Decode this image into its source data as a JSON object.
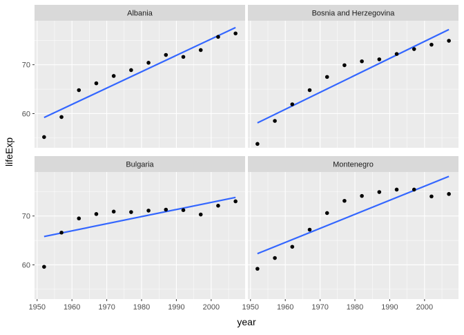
{
  "chart_data": {
    "type": "scatter",
    "xlabel": "year",
    "ylabel": "lifeExp",
    "x_ticks": [
      1950,
      1960,
      1970,
      1980,
      1990,
      2000
    ],
    "y_ticks": [
      60,
      70
    ],
    "xlim": [
      1949.25,
      2009.75
    ],
    "ylim": [
      53.0,
      79.0
    ],
    "grid": true,
    "colors": {
      "points": "#000000",
      "trend": "#3366FF",
      "panel_bg": "#EBEBEB",
      "strip_bg": "#D9D9D9",
      "grid": "#FFFFFF"
    },
    "x": [
      1952,
      1957,
      1962,
      1967,
      1972,
      1977,
      1982,
      1987,
      1992,
      1997,
      2002,
      2007
    ],
    "panels": [
      {
        "title": "Albania",
        "values": [
          55.2,
          59.3,
          64.8,
          66.2,
          67.7,
          68.9,
          70.4,
          72.0,
          71.6,
          73.0,
          75.7,
          76.4
        ],
        "trend": {
          "x": [
            1952,
            2007
          ],
          "y": [
            59.2,
            77.6
          ]
        }
      },
      {
        "title": "Bosnia and Herzegovina",
        "values": [
          53.8,
          58.5,
          61.9,
          64.8,
          67.5,
          69.9,
          70.7,
          71.1,
          72.2,
          73.2,
          74.1,
          74.9
        ],
        "trend": {
          "x": [
            1952,
            2007
          ],
          "y": [
            58.1,
            77.2
          ]
        }
      },
      {
        "title": "Bulgaria",
        "values": [
          59.6,
          66.6,
          69.5,
          70.4,
          70.9,
          70.8,
          71.1,
          71.3,
          71.2,
          70.3,
          72.1,
          73.0
        ],
        "trend": {
          "x": [
            1952,
            2007
          ],
          "y": [
            65.8,
            73.8
          ]
        }
      },
      {
        "title": "Montenegro",
        "values": [
          59.2,
          61.4,
          63.7,
          67.2,
          70.6,
          73.1,
          74.1,
          74.9,
          75.4,
          75.4,
          74.0,
          74.5
        ],
        "trend": {
          "x": [
            1952,
            2007
          ],
          "y": [
            62.3,
            78.1
          ]
        }
      }
    ]
  }
}
